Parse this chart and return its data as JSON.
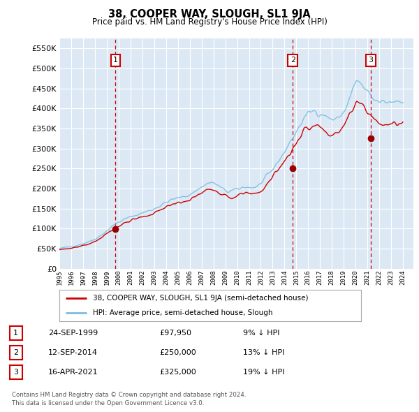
{
  "title": "38, COOPER WAY, SLOUGH, SL1 9JA",
  "subtitle": "Price paid vs. HM Land Registry's House Price Index (HPI)",
  "legend_line1": "38, COOPER WAY, SLOUGH, SL1 9JA (semi-detached house)",
  "legend_line2": "HPI: Average price, semi-detached house, Slough",
  "footer1": "Contains HM Land Registry data © Crown copyright and database right 2024.",
  "footer2": "This data is licensed under the Open Government Licence v3.0.",
  "transactions": [
    {
      "num": 1,
      "date": "24-SEP-1999",
      "price": "£97,950",
      "pct": "9% ↓ HPI",
      "year": 1999.73,
      "value": 97950
    },
    {
      "num": 2,
      "date": "12-SEP-2014",
      "price": "£250,000",
      "pct": "13% ↓ HPI",
      "year": 2014.7,
      "value": 250000
    },
    {
      "num": 3,
      "date": "16-APR-2021",
      "price": "£325,000",
      "pct": "19% ↓ HPI",
      "year": 2021.29,
      "value": 325000
    }
  ],
  "hpi_color": "#7bbde0",
  "price_color": "#cc0000",
  "plot_bg": "#dce9f5",
  "grid_color": "#ffffff",
  "ylim": [
    0,
    575000
  ],
  "yticks": [
    0,
    50000,
    100000,
    150000,
    200000,
    250000,
    300000,
    350000,
    400000,
    450000,
    500000,
    550000
  ],
  "xlim_start": 1995.0,
  "xlim_end": 2024.9
}
